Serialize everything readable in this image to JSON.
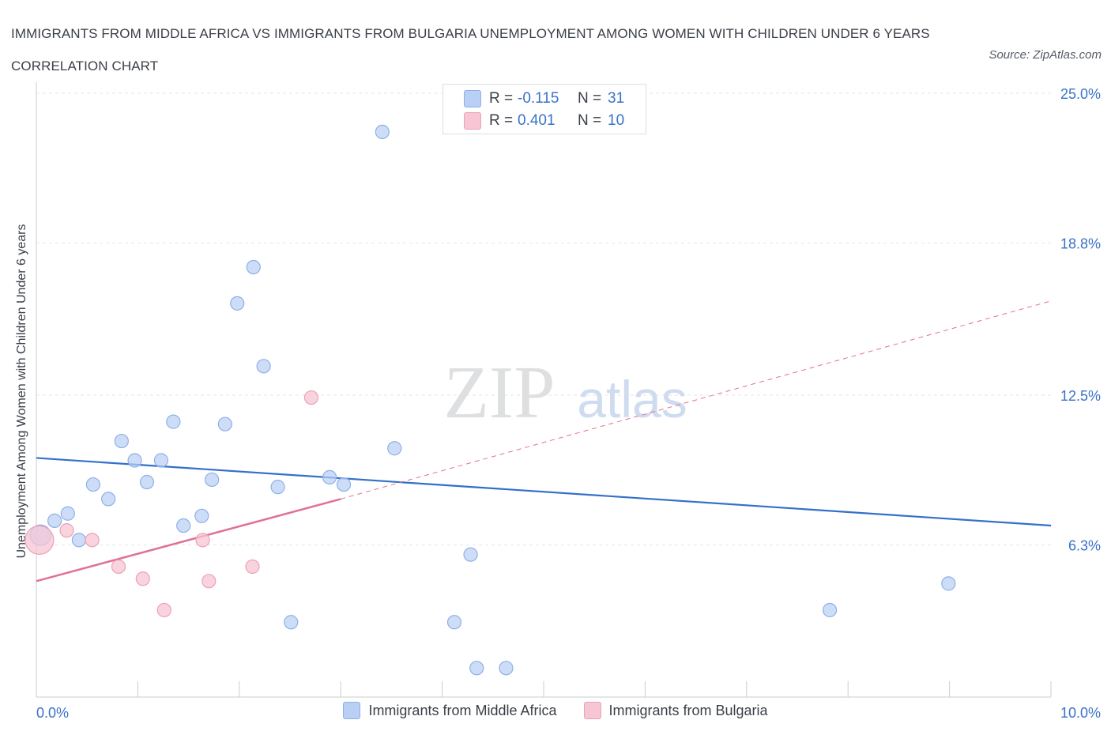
{
  "header": {
    "title": "IMMIGRANTS FROM MIDDLE AFRICA VS IMMIGRANTS FROM BULGARIA UNEMPLOYMENT AMONG WOMEN WITH CHILDREN UNDER 6 YEARS CORRELATION CHART",
    "source": "Source: ZipAtlas.com"
  },
  "colors": {
    "blue_fill": "#b9cff3",
    "blue_stroke": "#8db0e8",
    "blue_line": "#3370c8",
    "pink_fill": "#f7c6d4",
    "pink_stroke": "#eda0b6",
    "pink_line": "#e07098",
    "axis_text": "#3a72c8",
    "grid": "#e3e6ea"
  },
  "stats": {
    "series1": {
      "r_label": "R =",
      "r_value": "-0.115",
      "n_label": "N =",
      "n_value": "31"
    },
    "series2": {
      "r_label": "R =",
      "r_value": "0.401",
      "n_label": "N =",
      "n_value": "10"
    }
  },
  "watermark": {
    "zip": "ZIP",
    "atlas": "atlas"
  },
  "chart_data": {
    "type": "scatter",
    "title": "IMMIGRANTS FROM MIDDLE AFRICA VS IMMIGRANTS FROM BULGARIA UNEMPLOYMENT AMONG WOMEN WITH CHILDREN UNDER 6 YEARS CORRELATION CHART",
    "xlabel": "",
    "ylabel": "Unemployment Among Women with Children Under 6 years",
    "xlim": [
      0,
      10
    ],
    "ylim": [
      0,
      25
    ],
    "x_tick_labels": [
      "0.0%",
      "10.0%"
    ],
    "y_ticks": [
      6.3,
      12.5,
      18.8,
      25.0
    ],
    "y_tick_labels": [
      "6.3%",
      "12.5%",
      "18.8%",
      "25.0%"
    ],
    "grid": true,
    "legend_position": "bottom",
    "series": [
      {
        "name": "Immigrants from Middle Africa",
        "color": "#b9cff3",
        "points": [
          [
            0.04,
            6.7
          ],
          [
            0.18,
            7.3
          ],
          [
            0.31,
            7.6
          ],
          [
            0.42,
            6.5
          ],
          [
            0.56,
            8.8
          ],
          [
            0.71,
            8.2
          ],
          [
            0.84,
            10.6
          ],
          [
            0.97,
            9.8
          ],
          [
            1.09,
            8.9
          ],
          [
            1.23,
            9.8
          ],
          [
            1.35,
            11.4
          ],
          [
            1.45,
            7.1
          ],
          [
            1.63,
            7.5
          ],
          [
            1.73,
            9.0
          ],
          [
            1.86,
            11.3
          ],
          [
            1.98,
            16.3
          ],
          [
            2.14,
            17.8
          ],
          [
            2.24,
            13.7
          ],
          [
            2.38,
            8.7
          ],
          [
            2.51,
            3.1
          ],
          [
            2.89,
            9.1
          ],
          [
            3.03,
            8.8
          ],
          [
            3.41,
            23.4
          ],
          [
            3.53,
            10.3
          ],
          [
            4.12,
            3.1
          ],
          [
            4.28,
            5.9
          ],
          [
            4.34,
            1.2
          ],
          [
            4.63,
            1.2
          ],
          [
            5.72,
            23.6
          ],
          [
            7.82,
            3.6
          ],
          [
            8.99,
            4.7
          ]
        ],
        "trend": {
          "x": [
            0,
            10
          ],
          "y": [
            9.9,
            7.1
          ]
        }
      },
      {
        "name": "Immigrants from Bulgaria",
        "color": "#f7c6d4",
        "points": [
          [
            0.03,
            6.5
          ],
          [
            0.3,
            6.9
          ],
          [
            0.55,
            6.5
          ],
          [
            0.81,
            5.4
          ],
          [
            1.05,
            4.9
          ],
          [
            1.26,
            3.6
          ],
          [
            1.64,
            6.5
          ],
          [
            1.7,
            4.8
          ],
          [
            2.13,
            5.4
          ],
          [
            2.71,
            12.4
          ]
        ],
        "trend_solid": {
          "x": [
            0,
            3.0
          ],
          "y": [
            4.8,
            8.2
          ]
        },
        "trend_dashed": {
          "x": [
            3.0,
            10
          ],
          "y": [
            8.2,
            16.4
          ]
        }
      }
    ]
  }
}
